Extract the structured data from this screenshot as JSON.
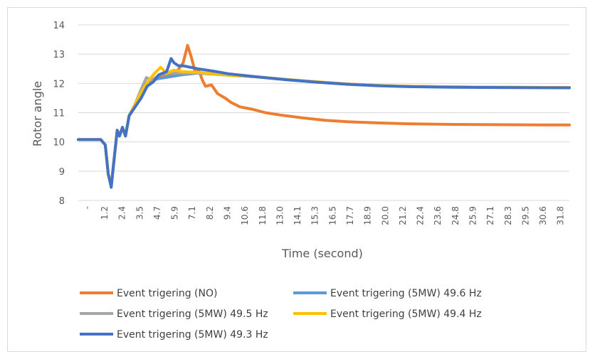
{
  "chart_data": {
    "type": "line",
    "title": "",
    "xlabel": "Time (second)",
    "ylabel": "Rotor angle",
    "ylim": [
      8,
      14
    ],
    "yticks": [
      "8",
      "9",
      "10",
      "11",
      "12",
      "13",
      "14"
    ],
    "xlim": [
      0,
      32.8
    ],
    "xticks": [
      "-",
      "1.2",
      "2.4",
      "3.5",
      "4.7",
      "5.9",
      "7.1",
      "8.2",
      "9.4",
      "10.6",
      "11.8",
      "13.0",
      "14.1",
      "15.3",
      "16.5",
      "17.7",
      "18.9",
      "20.0",
      "21.2",
      "22.4",
      "23.6",
      "24.8",
      "25.9",
      "27.1",
      "28.3",
      "29.5",
      "30.6",
      "31.8"
    ],
    "grid": "horizontal",
    "legend_position": "bottom",
    "series": [
      {
        "name": "Event trigering (NO)",
        "color": "#ED7D31",
        "points": [
          [
            0,
            10.08
          ],
          [
            1.5,
            10.08
          ],
          [
            1.8,
            9.9
          ],
          [
            2.0,
            8.9
          ],
          [
            2.2,
            8.5
          ],
          [
            2.35,
            9.2
          ],
          [
            2.6,
            10.4
          ],
          [
            2.75,
            10.2
          ],
          [
            2.95,
            10.5
          ],
          [
            3.15,
            10.2
          ],
          [
            3.4,
            10.9
          ],
          [
            3.8,
            11.2
          ],
          [
            4.1,
            11.5
          ],
          [
            4.5,
            12.0
          ],
          [
            5.0,
            12.1
          ],
          [
            5.5,
            12.25
          ],
          [
            6.0,
            12.3
          ],
          [
            6.5,
            12.35
          ],
          [
            7.0,
            12.7
          ],
          [
            7.3,
            13.3
          ],
          [
            7.55,
            12.9
          ],
          [
            7.8,
            12.4
          ],
          [
            8.05,
            12.45
          ],
          [
            8.3,
            12.1
          ],
          [
            8.5,
            11.9
          ],
          [
            8.9,
            11.95
          ],
          [
            9.3,
            11.65
          ],
          [
            9.8,
            11.5
          ],
          [
            10.2,
            11.35
          ],
          [
            10.8,
            11.2
          ],
          [
            11.6,
            11.12
          ],
          [
            12.5,
            11.0
          ],
          [
            13.5,
            10.92
          ],
          [
            15,
            10.82
          ],
          [
            16.5,
            10.74
          ],
          [
            18,
            10.69
          ],
          [
            20,
            10.65
          ],
          [
            22,
            10.62
          ],
          [
            25,
            10.6
          ],
          [
            28,
            10.59
          ],
          [
            31,
            10.58
          ],
          [
            32.8,
            10.58
          ]
        ]
      },
      {
        "name": "Event trigering (5MW) 49.6 Hz",
        "color": "#5B9BD5",
        "points": [
          [
            0,
            10.08
          ],
          [
            1.5,
            10.08
          ],
          [
            1.8,
            9.9
          ],
          [
            2.0,
            8.9
          ],
          [
            2.2,
            8.5
          ],
          [
            2.35,
            9.2
          ],
          [
            2.6,
            10.4
          ],
          [
            2.75,
            10.2
          ],
          [
            2.95,
            10.5
          ],
          [
            3.15,
            10.2
          ],
          [
            3.4,
            10.9
          ],
          [
            3.8,
            11.2
          ],
          [
            4.2,
            11.6
          ],
          [
            4.6,
            11.9
          ],
          [
            5.2,
            12.15
          ],
          [
            5.8,
            12.2
          ],
          [
            6.4,
            12.25
          ],
          [
            7.0,
            12.3
          ],
          [
            8.0,
            12.35
          ],
          [
            9.0,
            12.32
          ],
          [
            10,
            12.28
          ],
          [
            12,
            12.22
          ],
          [
            14,
            12.13
          ],
          [
            16,
            12.05
          ],
          [
            18,
            11.98
          ],
          [
            20,
            11.93
          ],
          [
            22,
            11.9
          ],
          [
            25,
            11.88
          ],
          [
            28,
            11.87
          ],
          [
            32.8,
            11.86
          ]
        ]
      },
      {
        "name": "Event trigering (5MW) 49.5 Hz",
        "color": "#A5A5A5",
        "points": [
          [
            0,
            10.08
          ],
          [
            1.5,
            10.08
          ],
          [
            1.8,
            9.9
          ],
          [
            2.0,
            8.9
          ],
          [
            2.2,
            8.5
          ],
          [
            2.35,
            9.2
          ],
          [
            2.6,
            10.4
          ],
          [
            2.75,
            10.2
          ],
          [
            2.95,
            10.5
          ],
          [
            3.15,
            10.2
          ],
          [
            3.4,
            10.9
          ],
          [
            3.8,
            11.3
          ],
          [
            4.2,
            11.8
          ],
          [
            4.55,
            12.2
          ],
          [
            4.9,
            12.1
          ],
          [
            5.4,
            12.3
          ],
          [
            6.0,
            12.35
          ],
          [
            7.0,
            12.35
          ],
          [
            8.0,
            12.35
          ],
          [
            9.0,
            12.32
          ],
          [
            10,
            12.28
          ],
          [
            12,
            12.22
          ],
          [
            14,
            12.13
          ],
          [
            16,
            12.05
          ],
          [
            18,
            11.98
          ],
          [
            20,
            11.93
          ],
          [
            22,
            11.9
          ],
          [
            25,
            11.88
          ],
          [
            28,
            11.87
          ],
          [
            32.8,
            11.86
          ]
        ]
      },
      {
        "name": "Event trigering (5MW) 49.4 Hz",
        "color": "#FFC000",
        "points": [
          [
            0,
            10.08
          ],
          [
            1.5,
            10.08
          ],
          [
            1.8,
            9.9
          ],
          [
            2.0,
            8.9
          ],
          [
            2.2,
            8.5
          ],
          [
            2.35,
            9.2
          ],
          [
            2.6,
            10.4
          ],
          [
            2.75,
            10.2
          ],
          [
            2.95,
            10.5
          ],
          [
            3.15,
            10.2
          ],
          [
            3.4,
            10.9
          ],
          [
            3.8,
            11.3
          ],
          [
            4.2,
            11.7
          ],
          [
            4.7,
            12.1
          ],
          [
            5.1,
            12.35
          ],
          [
            5.5,
            12.55
          ],
          [
            5.9,
            12.35
          ],
          [
            6.4,
            12.45
          ],
          [
            7.0,
            12.4
          ],
          [
            8.0,
            12.38
          ],
          [
            9.0,
            12.33
          ],
          [
            10,
            12.28
          ],
          [
            12,
            12.22
          ],
          [
            14,
            12.13
          ],
          [
            16,
            12.05
          ],
          [
            18,
            11.98
          ],
          [
            20,
            11.93
          ],
          [
            22,
            11.9
          ],
          [
            25,
            11.88
          ],
          [
            28,
            11.87
          ],
          [
            32.8,
            11.86
          ]
        ]
      },
      {
        "name": "Event trigering (5MW) 49.3 Hz",
        "color": "#4472C4",
        "points": [
          [
            0,
            10.08
          ],
          [
            1.5,
            10.08
          ],
          [
            1.8,
            9.9
          ],
          [
            2.0,
            8.9
          ],
          [
            2.2,
            8.45
          ],
          [
            2.35,
            9.2
          ],
          [
            2.6,
            10.4
          ],
          [
            2.75,
            10.2
          ],
          [
            2.95,
            10.5
          ],
          [
            3.15,
            10.2
          ],
          [
            3.4,
            10.9
          ],
          [
            3.8,
            11.2
          ],
          [
            4.2,
            11.5
          ],
          [
            4.6,
            11.9
          ],
          [
            5.0,
            12.05
          ],
          [
            5.4,
            12.3
          ],
          [
            5.9,
            12.4
          ],
          [
            6.2,
            12.85
          ],
          [
            6.4,
            12.7
          ],
          [
            6.7,
            12.6
          ],
          [
            7.0,
            12.6
          ],
          [
            7.5,
            12.55
          ],
          [
            8.0,
            12.5
          ],
          [
            9.0,
            12.42
          ],
          [
            10,
            12.33
          ],
          [
            12,
            12.22
          ],
          [
            14,
            12.12
          ],
          [
            16,
            12.04
          ],
          [
            18,
            11.97
          ],
          [
            20,
            11.92
          ],
          [
            22,
            11.89
          ],
          [
            25,
            11.87
          ],
          [
            28,
            11.86
          ],
          [
            32.8,
            11.85
          ]
        ]
      }
    ]
  }
}
